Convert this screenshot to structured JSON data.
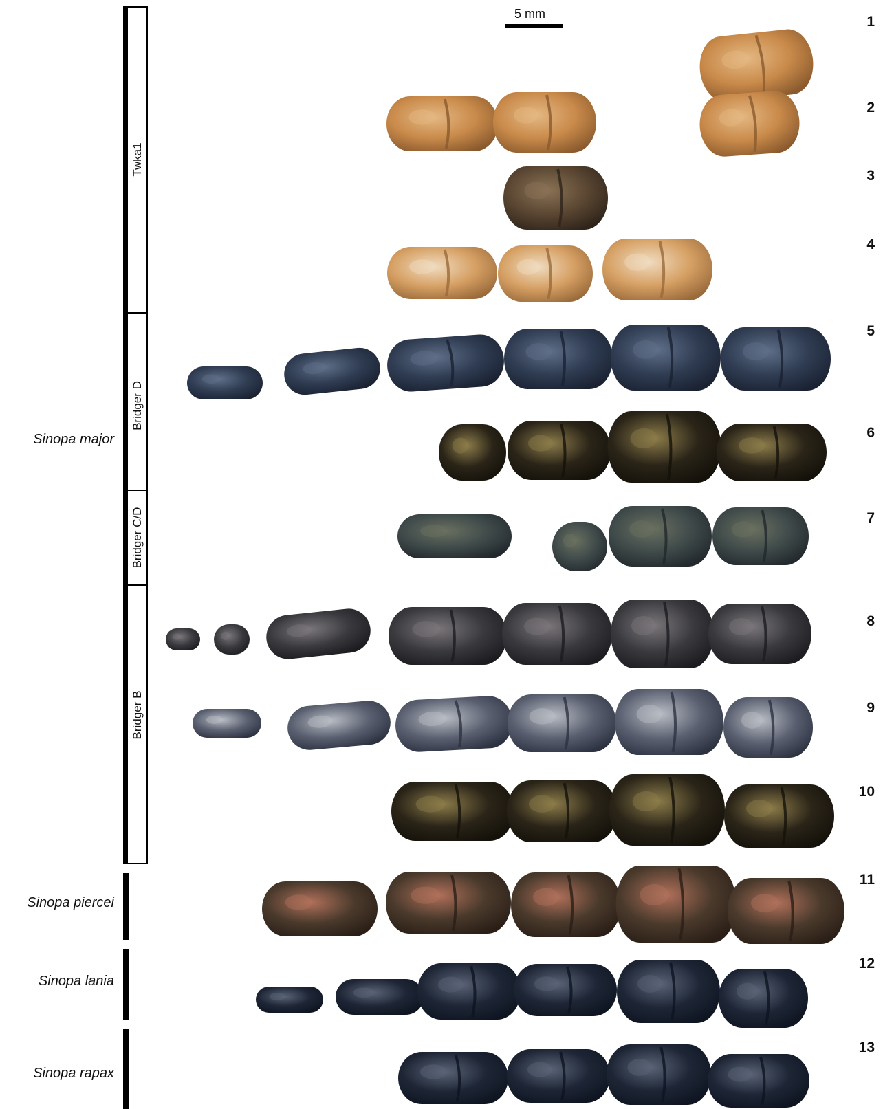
{
  "scale_bar": {
    "label": "5 mm"
  },
  "species": [
    {
      "name": "Sinopa major"
    },
    {
      "name": "Sinopa piercei"
    },
    {
      "name": "Sinopa lania"
    },
    {
      "name": "Sinopa rapax"
    }
  ],
  "stratigraphic_units": [
    {
      "label": "Twka1"
    },
    {
      "label": "Bridger D"
    },
    {
      "label": "Bridger C/D"
    },
    {
      "label": "Bridger B"
    }
  ],
  "rows": [
    {
      "number": "1",
      "palette": "amber"
    },
    {
      "number": "2",
      "palette": "amber"
    },
    {
      "number": "3",
      "palette": "dark-brown"
    },
    {
      "number": "4",
      "palette": "amber-cream"
    },
    {
      "number": "5",
      "palette": "slate-blue"
    },
    {
      "number": "6",
      "palette": "black-gold"
    },
    {
      "number": "7",
      "palette": "olive-blue"
    },
    {
      "number": "8",
      "palette": "charcoal"
    },
    {
      "number": "9",
      "palette": "gray-blue"
    },
    {
      "number": "10",
      "palette": "black-gold"
    },
    {
      "number": "11",
      "palette": "mixed-copper"
    },
    {
      "number": "12",
      "palette": "navy-dark"
    },
    {
      "number": "13",
      "palette": "navy-dark"
    }
  ],
  "colors": {
    "amber": [
      "#c98a4a",
      "#e4b883",
      "#8a5a2e"
    ],
    "amber-cream": [
      "#d6a064",
      "#f0dcc0",
      "#9a6a3a"
    ],
    "dark-brown": [
      "#5a4632",
      "#8a7256",
      "#2e241a"
    ],
    "slate-blue": [
      "#2f3c52",
      "#5f6f88",
      "#1a2232"
    ],
    "black-gold": [
      "#2a2418",
      "#8c7c4a",
      "#14110a"
    ],
    "olive-blue": [
      "#3f4a4a",
      "#6a7060",
      "#22282c"
    ],
    "charcoal": [
      "#3a3a3e",
      "#7a767a",
      "#1c1c20"
    ],
    "gray-blue": [
      "#5a6070",
      "#b8bcc4",
      "#2c3240"
    ],
    "mixed-copper": [
      "#4a3a2c",
      "#b0705a",
      "#2a1e16"
    ],
    "navy-dark": [
      "#1e2636",
      "#5a6476",
      "#0e1420"
    ]
  }
}
